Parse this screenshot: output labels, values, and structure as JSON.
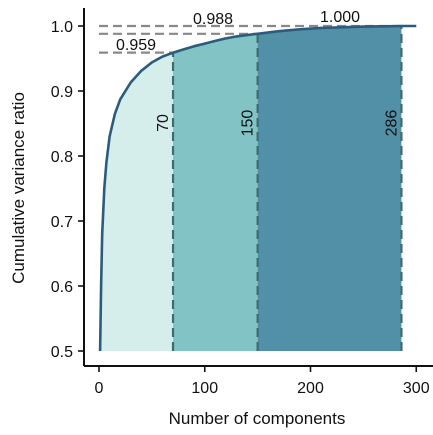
{
  "chart_data": {
    "type": "area",
    "xlabel": "Number of components",
    "ylabel": "Cumulative variance ratio",
    "xlim": [
      -12,
      304
    ],
    "ylim": [
      0.48,
      1.02
    ],
    "x_ticks": [
      0,
      100,
      200,
      300
    ],
    "x_tick_labels": [
      "0",
      "100",
      "200",
      "300"
    ],
    "y_ticks": [
      0.5,
      0.6,
      0.7,
      0.8,
      0.9,
      1.0
    ],
    "y_tick_labels": [
      "0.5",
      "0.6",
      "0.7",
      "0.8",
      "0.9",
      "1.0"
    ],
    "grid": false,
    "curve": {
      "x": [
        1,
        2,
        3,
        5,
        7,
        10,
        15,
        20,
        30,
        40,
        50,
        60,
        70,
        80,
        90,
        100,
        110,
        120,
        130,
        140,
        150,
        170,
        190,
        210,
        230,
        250,
        270,
        286,
        300
      ],
      "y": [
        0.5,
        0.6,
        0.68,
        0.75,
        0.79,
        0.83,
        0.865,
        0.887,
        0.913,
        0.931,
        0.944,
        0.953,
        0.959,
        0.964,
        0.969,
        0.973,
        0.977,
        0.981,
        0.984,
        0.986,
        0.988,
        0.992,
        0.995,
        0.997,
        0.998,
        0.999,
        0.9995,
        1.0,
        1.0
      ]
    },
    "regions": [
      {
        "from": 1,
        "to": 70,
        "color": "#d5eeec"
      },
      {
        "from": 70,
        "to": 150,
        "color": "#82c3c6"
      },
      {
        "from": 150,
        "to": 286,
        "color": "#5290a8"
      }
    ],
    "markers": [
      {
        "x": 70,
        "y": 0.959,
        "x_label": "70",
        "y_label": "0.959"
      },
      {
        "x": 150,
        "y": 0.988,
        "x_label": "150",
        "y_label": "0.988"
      },
      {
        "x": 286,
        "y": 1.0,
        "x_label": "286",
        "y_label": "1.000"
      }
    ],
    "curve_color": "#2c5c7c",
    "marker_line_color": "#3e6b70",
    "threshold_line_color": "#888888"
  }
}
